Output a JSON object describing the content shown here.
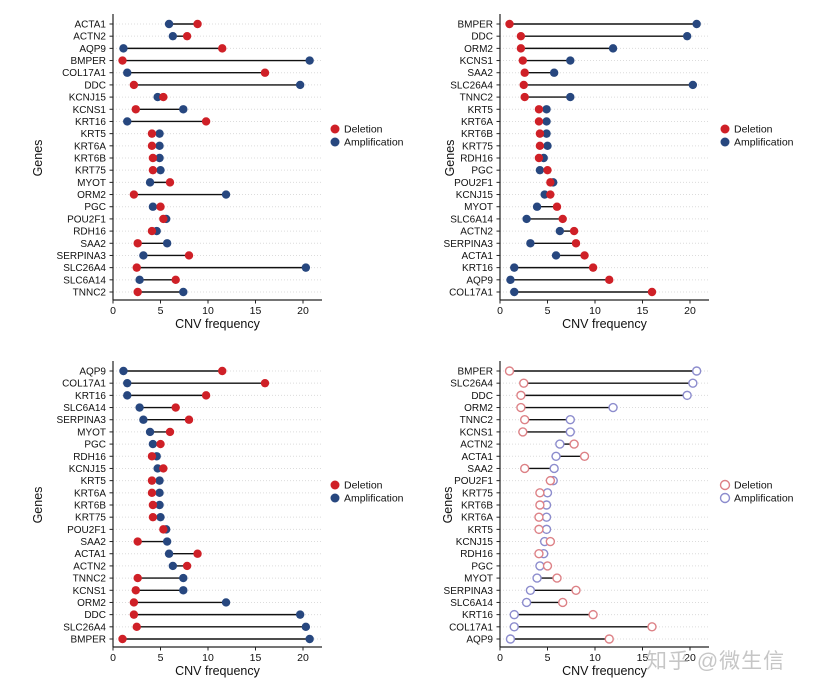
{
  "watermark": "知乎 @微生信",
  "colors": {
    "deletion": "#cf2027",
    "amplification": "#27477f",
    "deletion_open": "#dd8186",
    "amplification_open": "#8c8ccd",
    "segment": "#111111",
    "grid": "#dcdcdc",
    "axis": "#222222",
    "watermark": "#bdbdbd"
  },
  "chart_data": [
    {
      "id": "top_left",
      "type": "dumbbell",
      "xlabel": "CNV frequency",
      "ylabel": "Genes",
      "xlim": [
        0,
        22
      ],
      "x_ticks": [
        0,
        5,
        10,
        15,
        20
      ],
      "grid": true,
      "point_style": "filled",
      "legend_position": "right",
      "categories": [
        "ACTA1",
        "ACTN2",
        "AQP9",
        "BMPER",
        "COL17A1",
        "DDC",
        "KCNJ15",
        "KCNS1",
        "KRT16",
        "KRT5",
        "KRT6A",
        "KRT6B",
        "KRT75",
        "MYOT",
        "ORM2",
        "PGC",
        "POU2F1",
        "RDH16",
        "SAA2",
        "SERPINA3",
        "SLC26A4",
        "SLC6A14",
        "TNNC2"
      ],
      "series": [
        {
          "name": "Deletion",
          "color": "#cf2027",
          "values": [
            8.9,
            7.8,
            11.5,
            1.0,
            16.0,
            2.2,
            5.3,
            2.4,
            9.8,
            4.1,
            4.1,
            4.2,
            4.2,
            6.0,
            2.2,
            5.0,
            5.3,
            4.1,
            2.6,
            8.0,
            2.5,
            6.6,
            2.6
          ]
        },
        {
          "name": "Amplification",
          "color": "#27477f",
          "values": [
            5.9,
            6.3,
            1.1,
            20.7,
            1.5,
            19.7,
            4.7,
            7.4,
            1.5,
            4.9,
            4.9,
            4.9,
            5.0,
            3.9,
            11.9,
            4.2,
            5.6,
            4.6,
            5.7,
            3.2,
            20.3,
            2.8,
            7.4
          ]
        }
      ]
    },
    {
      "id": "top_right",
      "type": "dumbbell",
      "xlabel": "CNV frequency",
      "ylabel": "Genes",
      "xlim": [
        0,
        22
      ],
      "x_ticks": [
        0,
        5,
        10,
        15,
        20
      ],
      "grid": true,
      "point_style": "filled",
      "legend_position": "right",
      "categories": [
        "BMPER",
        "DDC",
        "ORM2",
        "KCNS1",
        "SAA2",
        "SLC26A4",
        "TNNC2",
        "KRT5",
        "KRT6A",
        "KRT6B",
        "KRT75",
        "RDH16",
        "PGC",
        "POU2F1",
        "KCNJ15",
        "MYOT",
        "SLC6A14",
        "ACTN2",
        "SERPINA3",
        "ACTA1",
        "KRT16",
        "AQP9",
        "COL17A1"
      ],
      "series": [
        {
          "name": "Deletion",
          "color": "#cf2027",
          "values": [
            1.0,
            2.2,
            2.2,
            2.4,
            2.6,
            2.5,
            2.6,
            4.1,
            4.1,
            4.2,
            4.2,
            4.1,
            5.0,
            5.3,
            5.3,
            6.0,
            6.6,
            7.8,
            8.0,
            8.9,
            9.8,
            11.5,
            16.0
          ]
        },
        {
          "name": "Amplification",
          "color": "#27477f",
          "values": [
            20.7,
            19.7,
            11.9,
            7.4,
            5.7,
            20.3,
            7.4,
            4.9,
            4.9,
            4.9,
            5.0,
            4.6,
            4.2,
            5.6,
            4.7,
            3.9,
            2.8,
            6.3,
            3.2,
            5.9,
            1.5,
            1.1,
            1.5
          ]
        }
      ]
    },
    {
      "id": "bottom_left",
      "type": "dumbbell",
      "xlabel": "CNV frequency",
      "ylabel": "Genes",
      "xlim": [
        0,
        22
      ],
      "x_ticks": [
        0,
        5,
        10,
        15,
        20
      ],
      "grid": true,
      "point_style": "filled",
      "legend_position": "right",
      "categories": [
        "AQP9",
        "COL17A1",
        "KRT16",
        "SLC6A14",
        "SERPINA3",
        "MYOT",
        "PGC",
        "RDH16",
        "KCNJ15",
        "KRT5",
        "KRT6A",
        "KRT6B",
        "KRT75",
        "POU2F1",
        "SAA2",
        "ACTA1",
        "ACTN2",
        "TNNC2",
        "KCNS1",
        "ORM2",
        "DDC",
        "SLC26A4",
        "BMPER"
      ],
      "series": [
        {
          "name": "Deletion",
          "color": "#cf2027",
          "values": [
            11.5,
            16.0,
            9.8,
            6.6,
            8.0,
            6.0,
            5.0,
            4.1,
            5.3,
            4.1,
            4.1,
            4.2,
            4.2,
            5.3,
            2.6,
            8.9,
            7.8,
            2.6,
            2.4,
            2.2,
            2.2,
            2.5,
            1.0
          ]
        },
        {
          "name": "Amplification",
          "color": "#27477f",
          "values": [
            1.1,
            1.5,
            1.5,
            2.8,
            3.2,
            3.9,
            4.2,
            4.6,
            4.7,
            4.9,
            4.9,
            4.9,
            5.0,
            5.6,
            5.7,
            5.9,
            6.3,
            7.4,
            7.4,
            11.9,
            19.7,
            20.3,
            20.7
          ]
        }
      ]
    },
    {
      "id": "bottom_right",
      "type": "dumbbell",
      "xlabel": "CNV frequency",
      "ylabel": "Genes",
      "xlim": [
        0,
        22
      ],
      "x_ticks": [
        0,
        5,
        10,
        15,
        20
      ],
      "grid": true,
      "point_style": "open",
      "legend_position": "right",
      "categories": [
        "BMPER",
        "SLC26A4",
        "DDC",
        "ORM2",
        "TNNC2",
        "KCNS1",
        "ACTN2",
        "ACTA1",
        "SAA2",
        "POU2F1",
        "KRT75",
        "KRT6B",
        "KRT6A",
        "KRT5",
        "KCNJ15",
        "RDH16",
        "PGC",
        "MYOT",
        "SERPINA3",
        "SLC6A14",
        "KRT16",
        "COL17A1",
        "AQP9"
      ],
      "series": [
        {
          "name": "Deletion",
          "color": "#dd8186",
          "values": [
            1.0,
            2.5,
            2.2,
            2.2,
            2.6,
            2.4,
            7.8,
            8.9,
            2.6,
            5.3,
            4.2,
            4.2,
            4.1,
            4.1,
            5.3,
            4.1,
            5.0,
            6.0,
            8.0,
            6.6,
            9.8,
            16.0,
            11.5
          ]
        },
        {
          "name": "Amplification",
          "color": "#8c8ccd",
          "values": [
            20.7,
            20.3,
            19.7,
            11.9,
            7.4,
            7.4,
            6.3,
            5.9,
            5.7,
            5.6,
            5.0,
            4.9,
            4.9,
            4.9,
            4.7,
            4.6,
            4.2,
            3.9,
            3.2,
            2.8,
            1.5,
            1.5,
            1.1
          ]
        }
      ]
    }
  ]
}
